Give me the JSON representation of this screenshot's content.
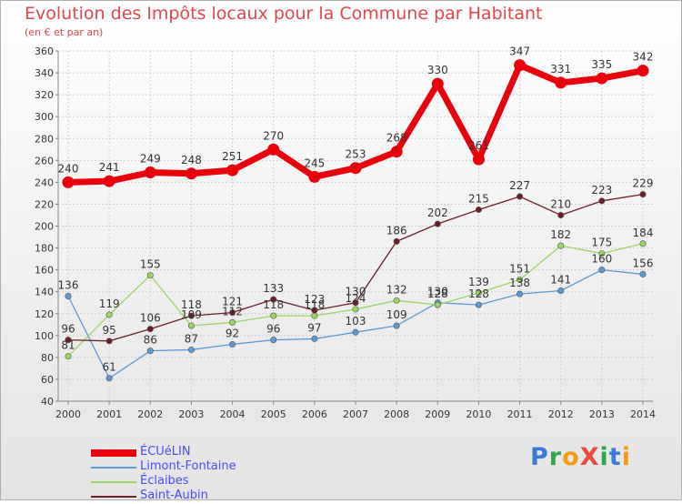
{
  "header": {
    "title": "Evolution des Impôts locaux pour la Commune par Habitant",
    "subtitle": "(en € et par an)"
  },
  "brand": {
    "logo_text": "ProXiti",
    "letter_colors": [
      "#3a7bd5",
      "#2ea84a",
      "#f39c12",
      "#e74c3c",
      "#2ea84a",
      "#3a7bd5",
      "#f39c12"
    ]
  },
  "chart_data": {
    "type": "line",
    "title": "Evolution des Impôts locaux pour la Commune par Habitant",
    "subtitle": "(en € et par an)",
    "xlabel": "",
    "ylabel": "",
    "categories": [
      "2000",
      "2001",
      "2002",
      "2003",
      "2004",
      "2005",
      "2006",
      "2007",
      "2008",
      "2009",
      "2010",
      "2011",
      "2012",
      "2013",
      "2014"
    ],
    "ylim": [
      40,
      360
    ],
    "yticks": [
      40,
      60,
      80,
      100,
      120,
      140,
      160,
      180,
      200,
      220,
      240,
      260,
      280,
      300,
      320,
      340,
      360
    ],
    "grid": true,
    "legend_position": "bottom-left",
    "series": [
      {
        "name": "ÉCUéLIN",
        "color": "#e8000d",
        "values": [
          240,
          241,
          249,
          248,
          251,
          270,
          245,
          253,
          268,
          330,
          261,
          347,
          331,
          335,
          342
        ],
        "labels": [
          "240",
          "241",
          "249",
          "248",
          "251",
          "270",
          "245",
          "253",
          "268",
          "330",
          "261",
          "347",
          "331",
          "335",
          "342"
        ]
      },
      {
        "name": "Limont-Fontaine",
        "color": "#5b9bd5",
        "values": [
          136,
          61,
          86,
          87,
          92,
          96,
          97,
          103,
          109,
          130,
          128,
          138,
          141,
          160,
          156
        ],
        "labels": [
          "136",
          "61",
          "86",
          "87",
          "92",
          "96",
          "97",
          "103",
          "109",
          "130",
          "128",
          "138",
          "141",
          "160",
          "156"
        ]
      },
      {
        "name": "Éclaibes",
        "color": "#9ad662",
        "values": [
          81,
          119,
          155,
          109,
          112,
          118,
          118,
          124,
          132,
          128,
          139,
          151,
          182,
          175,
          184
        ],
        "labels": [
          "81",
          "119",
          "155",
          "109",
          "112",
          "118",
          "118",
          "124",
          "132",
          "128",
          "139",
          "151",
          "182",
          "175",
          "184"
        ]
      },
      {
        "name": "Saint-Aubin",
        "color": "#6b1f27",
        "values": [
          96,
          95,
          106,
          118,
          121,
          133,
          123,
          130,
          186,
          202,
          215,
          227,
          210,
          223,
          229
        ],
        "labels": [
          "96",
          "95",
          "106",
          "118",
          "121",
          "133",
          "123",
          "130",
          "186",
          "202",
          "215",
          "227",
          "210",
          "223",
          "229"
        ]
      }
    ]
  }
}
